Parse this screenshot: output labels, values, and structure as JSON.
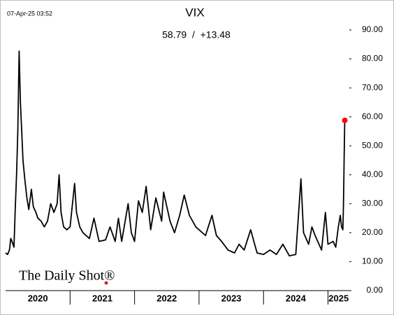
{
  "chart_data": {
    "type": "line",
    "timestamp": "07-Apr-25 03:52",
    "title": "VIX",
    "subtitle": "58.79  /  +13.48",
    "watermark": "The Daily Shot®",
    "year_labels": [
      "2020",
      "2021",
      "2022",
      "2023",
      "2024",
      "2025"
    ],
    "year_boundaries": [
      2021,
      2022,
      2023,
      2024,
      2025
    ],
    "xlim": [
      2020,
      2025.33
    ],
    "ylim": [
      0,
      90
    ],
    "yticks": [
      {
        "value": 0,
        "label": "0.00"
      },
      {
        "value": 10,
        "label": "10.00"
      },
      {
        "value": 20,
        "label": "20.00"
      },
      {
        "value": 30,
        "label": "30.00"
      },
      {
        "value": 40,
        "label": "40.00"
      },
      {
        "value": 50,
        "label": "50.00"
      },
      {
        "value": 60,
        "label": "60.00"
      },
      {
        "value": 70,
        "label": "70.00"
      },
      {
        "value": 80,
        "label": "80.00"
      },
      {
        "value": 90,
        "label": "90.00"
      }
    ],
    "grid": false,
    "series": [
      {
        "color": "#000000",
        "marker_color": "#ff0000",
        "x": [
          2020.0,
          2020.03,
          2020.06,
          2020.08,
          2020.1,
          2020.13,
          2020.15,
          2020.17,
          2020.19,
          2020.21,
          2020.23,
          2020.25,
          2020.27,
          2020.3,
          2020.33,
          2020.36,
          2020.4,
          2020.43,
          2020.47,
          2020.5,
          2020.55,
          2020.6,
          2020.65,
          2020.7,
          2020.75,
          2020.8,
          2020.83,
          2020.86,
          2020.9,
          2020.95,
          2021.0,
          2021.07,
          2021.1,
          2021.15,
          2021.2,
          2021.3,
          2021.37,
          2021.45,
          2021.55,
          2021.62,
          2021.7,
          2021.75,
          2021.8,
          2021.9,
          2021.95,
          2022.0,
          2022.06,
          2022.12,
          2022.18,
          2022.25,
          2022.33,
          2022.42,
          2022.45,
          2022.55,
          2022.62,
          2022.7,
          2022.77,
          2022.85,
          2022.95,
          2023.0,
          2023.1,
          2023.2,
          2023.27,
          2023.35,
          2023.45,
          2023.55,
          2023.62,
          2023.7,
          2023.8,
          2023.9,
          2024.0,
          2024.1,
          2024.2,
          2024.3,
          2024.4,
          2024.5,
          2024.58,
          2024.62,
          2024.7,
          2024.75,
          2024.8,
          2024.9,
          2024.96,
          2025.0,
          2025.08,
          2025.12,
          2025.16,
          2025.19,
          2025.21,
          2025.23,
          2025.24,
          2025.25,
          2025.26
        ],
        "values": [
          13,
          12.5,
          14,
          18,
          17,
          15,
          28,
          40,
          55,
          82.7,
          65,
          55,
          45,
          38,
          32,
          28,
          35,
          29,
          27,
          25,
          24,
          22,
          24,
          30,
          27,
          30,
          40,
          27,
          22,
          21,
          22,
          37,
          27,
          22,
          20,
          18,
          25,
          17,
          17.5,
          22,
          17,
          25,
          17,
          30,
          20,
          17,
          31,
          27,
          36,
          21,
          32,
          24,
          34,
          24,
          20,
          26,
          33,
          26,
          22,
          21,
          19,
          26,
          19,
          17,
          14,
          13,
          16,
          14,
          21,
          13,
          12.5,
          14,
          12.5,
          16,
          12,
          12.5,
          38.6,
          20,
          16,
          22,
          19,
          14,
          27,
          16,
          17,
          15,
          22,
          26,
          22,
          21,
          30,
          45.3,
          58.79
        ]
      }
    ]
  }
}
